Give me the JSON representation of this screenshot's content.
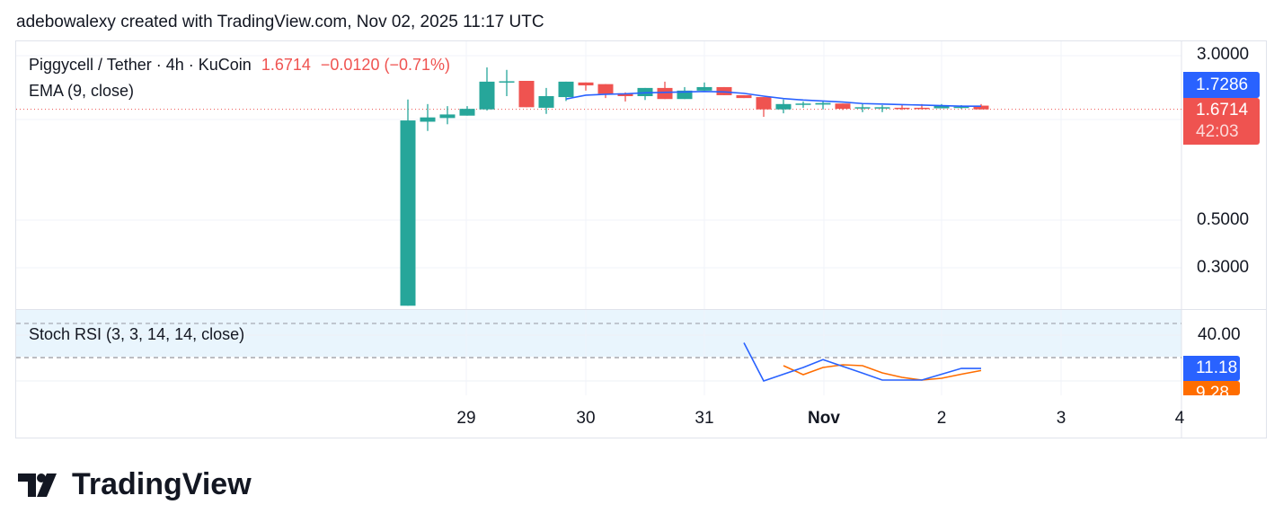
{
  "header": "adebowalexy created with TradingView.com, Nov 02, 2025 11:17 UTC",
  "legend": {
    "symbol": "Piggycell / Tether · 4h · KuCoin",
    "last": "1.6714",
    "change": "−0.0120 (−0.71%)",
    "ema": "EMA (9, close)",
    "stoch": "Stoch RSI (3, 3, 14, 14, close)"
  },
  "price_axis": [
    "3.0000",
    "0.5000",
    "0.3000"
  ],
  "stoch_axis": [
    "40.00"
  ],
  "tags": {
    "ema": "1.7286",
    "price": "1.6714",
    "countdown": "42:03",
    "k": "11.18",
    "d": "9.28"
  },
  "time_axis": [
    "29",
    "30",
    "31",
    "Nov",
    "2",
    "3",
    "4"
  ],
  "logo": "TradingView",
  "colors": {
    "up": "#26a69a",
    "down": "#ef5350",
    "ema": "#2962ff",
    "k": "#2962ff",
    "d": "#ff6d00"
  },
  "chart_data": {
    "type": "candlestick",
    "scale": "log",
    "candles": [
      [
        0.196,
        1.48,
        1.86,
        0.196
      ],
      [
        1.46,
        1.53,
        1.77,
        1.32
      ],
      [
        1.52,
        1.58,
        1.73,
        1.42
      ],
      [
        1.56,
        1.68,
        1.73,
        1.56
      ],
      [
        1.67,
        2.26,
        2.64,
        1.65
      ],
      [
        2.26,
        2.27,
        2.57,
        1.93
      ],
      [
        2.28,
        1.71,
        2.28,
        1.71
      ],
      [
        1.7,
        1.93,
        2.11,
        1.59
      ],
      [
        1.91,
        2.26,
        2.26,
        1.83
      ],
      [
        2.24,
        2.17,
        2.24,
        2.05
      ],
      [
        2.2,
        1.98,
        2.2,
        1.89
      ],
      [
        1.99,
        1.93,
        2.01,
        1.82
      ],
      [
        1.93,
        2.11,
        2.11,
        1.85
      ],
      [
        2.11,
        1.87,
        2.26,
        1.87
      ],
      [
        1.87,
        2.05,
        2.13,
        1.87
      ],
      [
        2.05,
        2.13,
        2.24,
        2.05
      ],
      [
        2.13,
        1.95,
        2.13,
        1.95
      ],
      [
        1.95,
        1.89,
        1.95,
        1.89
      ],
      [
        1.91,
        1.67,
        1.91,
        1.54
      ],
      [
        1.67,
        1.77,
        1.86,
        1.6
      ],
      [
        1.76,
        1.78,
        1.82,
        1.7
      ],
      [
        1.76,
        1.79,
        1.83,
        1.67
      ],
      [
        1.78,
        1.68,
        1.78,
        1.66
      ],
      [
        1.7,
        1.71,
        1.77,
        1.62
      ],
      [
        1.7,
        1.71,
        1.75,
        1.62
      ],
      [
        1.7,
        1.69,
        1.76,
        1.66
      ],
      [
        1.7,
        1.69,
        1.77,
        1.67
      ],
      [
        1.69,
        1.75,
        1.77,
        1.69
      ],
      [
        1.71,
        1.72,
        1.75,
        1.68
      ],
      [
        1.74,
        1.67,
        1.77,
        1.67
      ]
    ],
    "ema_start": 8,
    "ema": [
      1.87,
      1.95,
      1.97,
      1.98,
      2.0,
      2.01,
      2.02,
      2.03,
      2.02,
      1.99,
      1.93,
      1.88,
      1.85,
      1.83,
      1.81,
      1.78,
      1.77,
      1.76,
      1.75,
      1.74,
      1.73,
      1.7286
    ],
    "stoch_k_start": 17,
    "stoch_k": [
      34,
      0,
      6,
      12,
      19,
      13,
      7,
      0.8,
      0.8,
      0.8,
      6,
      11.2,
      11.18
    ],
    "stoch_d_start": 19,
    "stoch_d": [
      13.6,
      5.6,
      12,
      14.4,
      13.6,
      7.2,
      3.2,
      0.8,
      2.4,
      6,
      9.28
    ]
  }
}
